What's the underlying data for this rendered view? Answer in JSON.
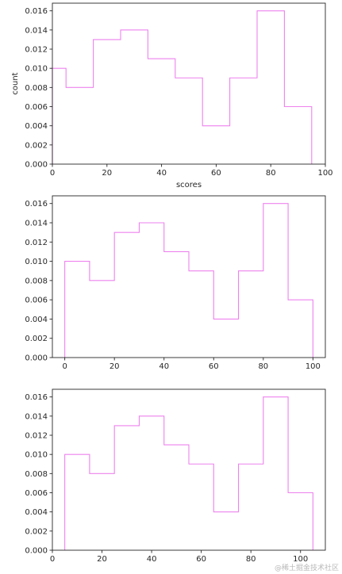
{
  "colors": {
    "histogram": "#ee82ee",
    "axes": "#262626"
  },
  "watermark": "@稀土掘金技术社区",
  "chart_data": [
    {
      "type": "bar",
      "histtype": "step",
      "bin_edges": [
        0,
        5,
        15,
        25,
        35,
        45,
        55,
        65,
        75,
        85,
        95
      ],
      "values": [
        0.01,
        0.008,
        0.013,
        0.014,
        0.011,
        0.009,
        0.004,
        0.009,
        0.016,
        0.006
      ],
      "xlim": [
        0,
        100
      ],
      "ylim": [
        0,
        0.0168
      ],
      "xticks": [
        "0",
        "20",
        "40",
        "60",
        "80",
        "100"
      ],
      "xtick_values": [
        0,
        20,
        40,
        60,
        80,
        100
      ],
      "yticks": [
        "0.000",
        "0.002",
        "0.004",
        "0.006",
        "0.008",
        "0.010",
        "0.012",
        "0.014",
        "0.016"
      ],
      "ytick_values": [
        0,
        0.002,
        0.004,
        0.006,
        0.008,
        0.01,
        0.012,
        0.014,
        0.016
      ],
      "xlabel": "scores",
      "ylabel": "count",
      "title": ""
    },
    {
      "type": "bar",
      "histtype": "step",
      "bin_edges": [
        0,
        10,
        20,
        30,
        40,
        50,
        60,
        70,
        80,
        90,
        100
      ],
      "values": [
        0.01,
        0.008,
        0.013,
        0.014,
        0.011,
        0.009,
        0.004,
        0.009,
        0.016,
        0.006
      ],
      "xlim": [
        -5,
        105
      ],
      "ylim": [
        0,
        0.0168
      ],
      "xticks": [
        "0",
        "20",
        "40",
        "60",
        "80",
        "100"
      ],
      "xtick_values": [
        0,
        20,
        40,
        60,
        80,
        100
      ],
      "yticks": [
        "0.000",
        "0.002",
        "0.004",
        "0.006",
        "0.008",
        "0.010",
        "0.012",
        "0.014",
        "0.016"
      ],
      "ytick_values": [
        0,
        0.002,
        0.004,
        0.006,
        0.008,
        0.01,
        0.012,
        0.014,
        0.016
      ],
      "xlabel": "",
      "ylabel": "",
      "title": ""
    },
    {
      "type": "bar",
      "histtype": "step",
      "bin_edges": [
        5,
        15,
        25,
        35,
        45,
        55,
        65,
        75,
        85,
        95,
        105
      ],
      "values": [
        0.01,
        0.008,
        0.013,
        0.014,
        0.011,
        0.009,
        0.004,
        0.009,
        0.016,
        0.006
      ],
      "xlim": [
        0,
        110
      ],
      "ylim": [
        0,
        0.0168
      ],
      "xticks": [
        "0",
        "20",
        "40",
        "60",
        "80",
        "100"
      ],
      "xtick_values": [
        0,
        20,
        40,
        60,
        80,
        100
      ],
      "yticks": [
        "0.000",
        "0.002",
        "0.004",
        "0.006",
        "0.008",
        "0.010",
        "0.012",
        "0.014",
        "0.016"
      ],
      "ytick_values": [
        0,
        0.002,
        0.004,
        0.006,
        0.008,
        0.01,
        0.012,
        0.014,
        0.016
      ],
      "xlabel": "",
      "ylabel": "",
      "title": ""
    }
  ]
}
